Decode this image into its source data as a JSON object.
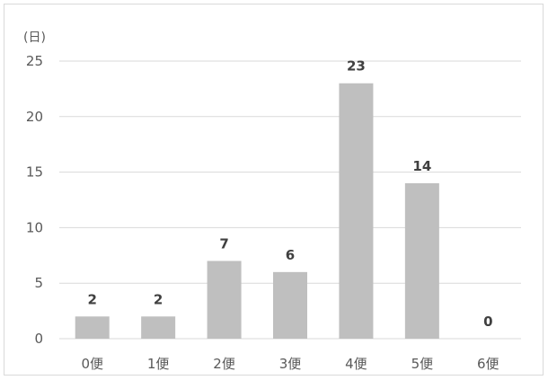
{
  "chart_data": {
    "type": "bar",
    "title": "",
    "xlabel": "",
    "ylabel": "(日)",
    "categories": [
      "0便",
      "1便",
      "2便",
      "3便",
      "4便",
      "5便",
      "6便"
    ],
    "values": [
      2,
      2,
      7,
      6,
      23,
      14,
      0
    ],
    "ylim": [
      0,
      25
    ],
    "yticks": [
      "0",
      "5",
      "10",
      "15",
      "20",
      "25"
    ],
    "grid": true,
    "legend": "none",
    "bar_color": "#bfbfbf",
    "grid_color": "#d9d9d9"
  }
}
